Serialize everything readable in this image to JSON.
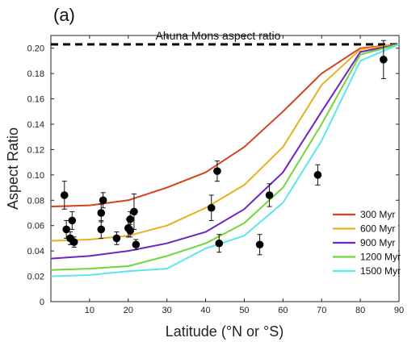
{
  "chart_data": {
    "type": "line",
    "panel_label": "(a)",
    "xlabel": "Latitude (°N or °S)",
    "ylabel": "Aspect Ratio",
    "xlim": [
      0,
      90
    ],
    "ylim": [
      0,
      0.21
    ],
    "xticks": [
      10,
      20,
      30,
      40,
      50,
      60,
      70,
      80,
      90
    ],
    "yticks": [
      0,
      0.02,
      0.04,
      0.06,
      0.08,
      0.1,
      0.12,
      0.14,
      0.16,
      0.18,
      0.2
    ],
    "ytick_labels": [
      "0",
      "0.02",
      "0.04",
      "0.06",
      "0.08",
      "0.10",
      "0.12",
      "0.14",
      "0.16",
      "0.18",
      "0.20"
    ],
    "grid": false,
    "legend_position": "lower-right",
    "reference_line": {
      "label": "Ahuna Mons aspect ratio",
      "y": 0.203,
      "color": "#000000",
      "style": "dashed"
    },
    "series": [
      {
        "name": "300 Myr",
        "color": "#d9401a",
        "x": [
          0,
          10,
          20,
          30,
          40,
          50,
          60,
          70,
          80,
          90
        ],
        "y": [
          0.075,
          0.076,
          0.08,
          0.09,
          0.102,
          0.122,
          0.15,
          0.18,
          0.2,
          0.203
        ]
      },
      {
        "name": "600 Myr",
        "color": "#e8b020",
        "x": [
          0,
          10,
          20,
          30,
          40,
          50,
          60,
          70,
          80,
          90
        ],
        "y": [
          0.048,
          0.049,
          0.052,
          0.06,
          0.074,
          0.092,
          0.122,
          0.171,
          0.199,
          0.203
        ]
      },
      {
        "name": "900 Myr",
        "color": "#6e22c8",
        "x": [
          0,
          10,
          20,
          30,
          40,
          50,
          60,
          70,
          80,
          90
        ],
        "y": [
          0.034,
          0.036,
          0.04,
          0.046,
          0.055,
          0.073,
          0.102,
          0.15,
          0.197,
          0.203
        ]
      },
      {
        "name": "1200 Myr",
        "color": "#72d63a",
        "x": [
          0,
          10,
          20,
          30,
          40,
          50,
          60,
          70,
          80,
          90
        ],
        "y": [
          0.025,
          0.026,
          0.028,
          0.036,
          0.046,
          0.062,
          0.09,
          0.14,
          0.195,
          0.203
        ]
      },
      {
        "name": "1500 Myr",
        "color": "#5ae6ee",
        "x": [
          0,
          10,
          20,
          30,
          40,
          50,
          60,
          70,
          80,
          90
        ],
        "y": [
          0.02,
          0.021,
          0.024,
          0.026,
          0.042,
          0.052,
          0.078,
          0.127,
          0.19,
          0.203
        ]
      }
    ],
    "observations": [
      {
        "x": 3.5,
        "y": 0.084,
        "err": 0.011
      },
      {
        "x": 4,
        "y": 0.057,
        "err": 0.007
      },
      {
        "x": 5,
        "y": 0.05,
        "err": 0.005
      },
      {
        "x": 5.5,
        "y": 0.064,
        "err": 0.007
      },
      {
        "x": 6,
        "y": 0.047,
        "err": 0.004
      },
      {
        "x": 13,
        "y": 0.07,
        "err": 0.007
      },
      {
        "x": 13.5,
        "y": 0.08,
        "err": 0.006
      },
      {
        "x": 13,
        "y": 0.057,
        "err": 0.007
      },
      {
        "x": 17,
        "y": 0.05,
        "err": 0.005
      },
      {
        "x": 20,
        "y": 0.058,
        "err": 0.007
      },
      {
        "x": 20.5,
        "y": 0.065,
        "err": 0.006
      },
      {
        "x": 20.5,
        "y": 0.056,
        "err": 0.005
      },
      {
        "x": 21.5,
        "y": 0.071,
        "err": 0.014
      },
      {
        "x": 22,
        "y": 0.045,
        "err": 0.004
      },
      {
        "x": 41.5,
        "y": 0.074,
        "err": 0.01
      },
      {
        "x": 43,
        "y": 0.103,
        "err": 0.008
      },
      {
        "x": 43.5,
        "y": 0.046,
        "err": 0.007
      },
      {
        "x": 54,
        "y": 0.045,
        "err": 0.008
      },
      {
        "x": 56.5,
        "y": 0.084,
        "err": 0.009
      },
      {
        "x": 69,
        "y": 0.1,
        "err": 0.008
      },
      {
        "x": 86,
        "y": 0.191,
        "err": 0.015
      }
    ]
  }
}
